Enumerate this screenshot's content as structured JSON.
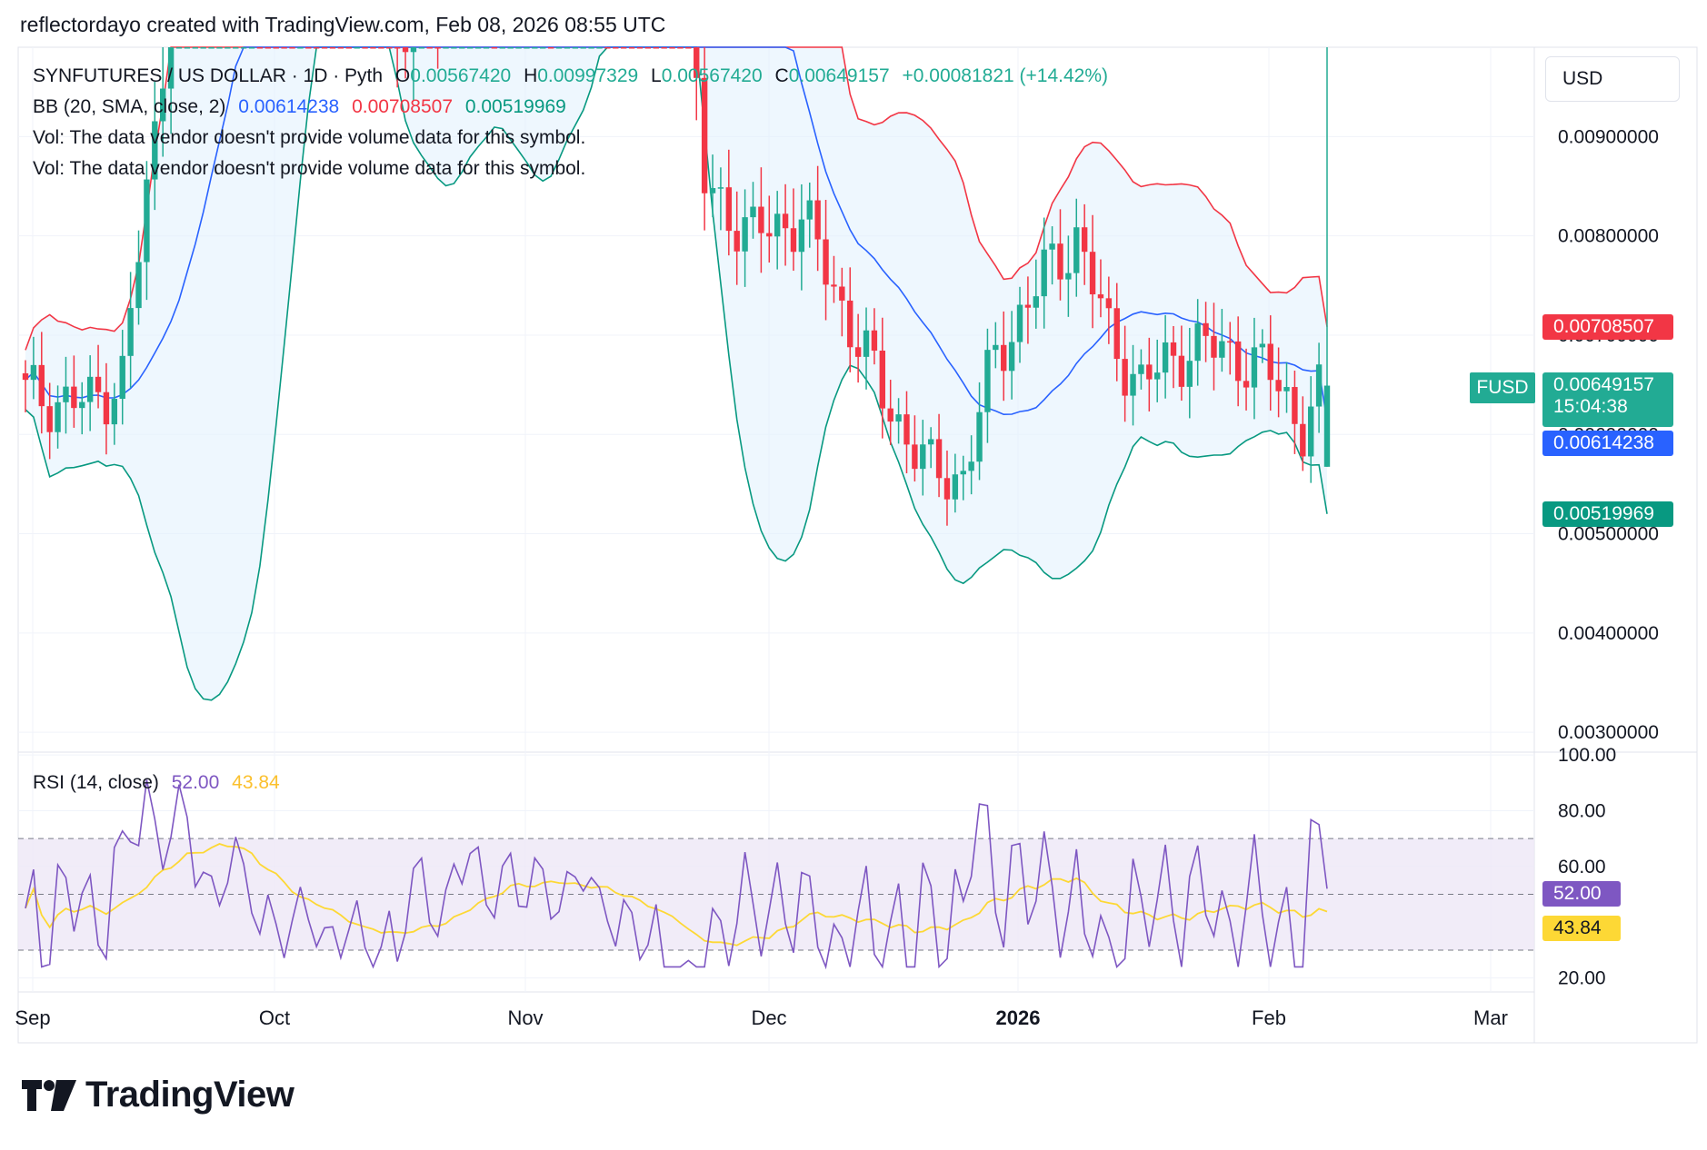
{
  "header": {
    "credit": "reflectordayo created with TradingView.com, Feb 08, 2026 08:55 UTC"
  },
  "legend": {
    "symbol": "SYNFUTURES / US DOLLAR · 1D · Pyth",
    "open_label": "O",
    "open": "0.00567420",
    "high_label": "H",
    "high": "0.00997329",
    "low_label": "L",
    "low": "0.00567420",
    "close_label": "C",
    "close": "0.00649157",
    "change": "+0.00081821 (+14.42%)",
    "bb_label": "BB (20, SMA, close, 2)",
    "bb_basis": "0.00614238",
    "bb_upper": "0.00708507",
    "bb_lower": "0.00519969",
    "vol_line_1": "Vol: The data vendor doesn't provide volume data for this symbol.",
    "vol_line_2": "Vol: The data vendor doesn't provide volume data for this symbol.",
    "rsi_label": "RSI (14, close)",
    "rsi_value": "52.00",
    "rsi_ma_value": "43.84"
  },
  "price_scale": {
    "currency": "USD",
    "symbol_badge": "FUSD",
    "countdown": "15:04:38",
    "ticks": [
      "0.00900000",
      "0.00800000",
      "0.00700000",
      "0.00600000",
      "0.00500000",
      "0.00400000",
      "0.00300000"
    ],
    "tag_upper": "0.00708507",
    "tag_close": "0.00649157",
    "tag_basis": "0.00614238",
    "tag_lower": "0.00519969"
  },
  "rsi_scale": {
    "ticks": [
      "100.00",
      "80.00",
      "60.00",
      "20.00"
    ],
    "tag_rsi": "52.00",
    "tag_ma": "43.84"
  },
  "time_axis": {
    "labels": [
      "Sep",
      "Oct",
      "Nov",
      "Dec",
      "2026",
      "Feb",
      "Mar"
    ]
  },
  "colors": {
    "up": "#22ab94",
    "down": "#f23645",
    "bb_basis": "#2962ff",
    "bb_upper": "#f23645",
    "bb_lower": "#089981",
    "bb_fill": "#e3f2fd",
    "rsi": "#7e57c2",
    "rsi_ma": "#fdd835",
    "rsi_band": "#ede7f6"
  },
  "brand": {
    "name": "TradingView"
  },
  "chart_data": [
    {
      "type": "candlestick",
      "title": "SYNFUTURES / US DOLLAR · 1D · Pyth",
      "x_labels": [
        "Sep",
        "Oct",
        "Nov",
        "Dec",
        "2026",
        "Feb",
        "Mar"
      ],
      "ylim": [
        0.0028,
        0.0099
      ],
      "grid": true,
      "note_visible_range": "candles approximately from late Aug 2025 to Feb 08 2026",
      "ohlc_recent": [
        {
          "date": "2026-02-08",
          "open": 0.0056742,
          "high": 0.00997329,
          "low": 0.0056742,
          "close": 0.00649157
        }
      ],
      "bollinger": {
        "basis_last": 0.00614238,
        "upper_last": 0.00708507,
        "lower_last": 0.00519969
      }
    },
    {
      "type": "line",
      "title": "RSI (14, close)",
      "ylim": [
        20,
        100
      ],
      "bands": [
        30,
        70
      ],
      "series": [
        {
          "name": "RSI",
          "last": 52.0
        },
        {
          "name": "RSI MA",
          "last": 43.84
        }
      ]
    }
  ]
}
